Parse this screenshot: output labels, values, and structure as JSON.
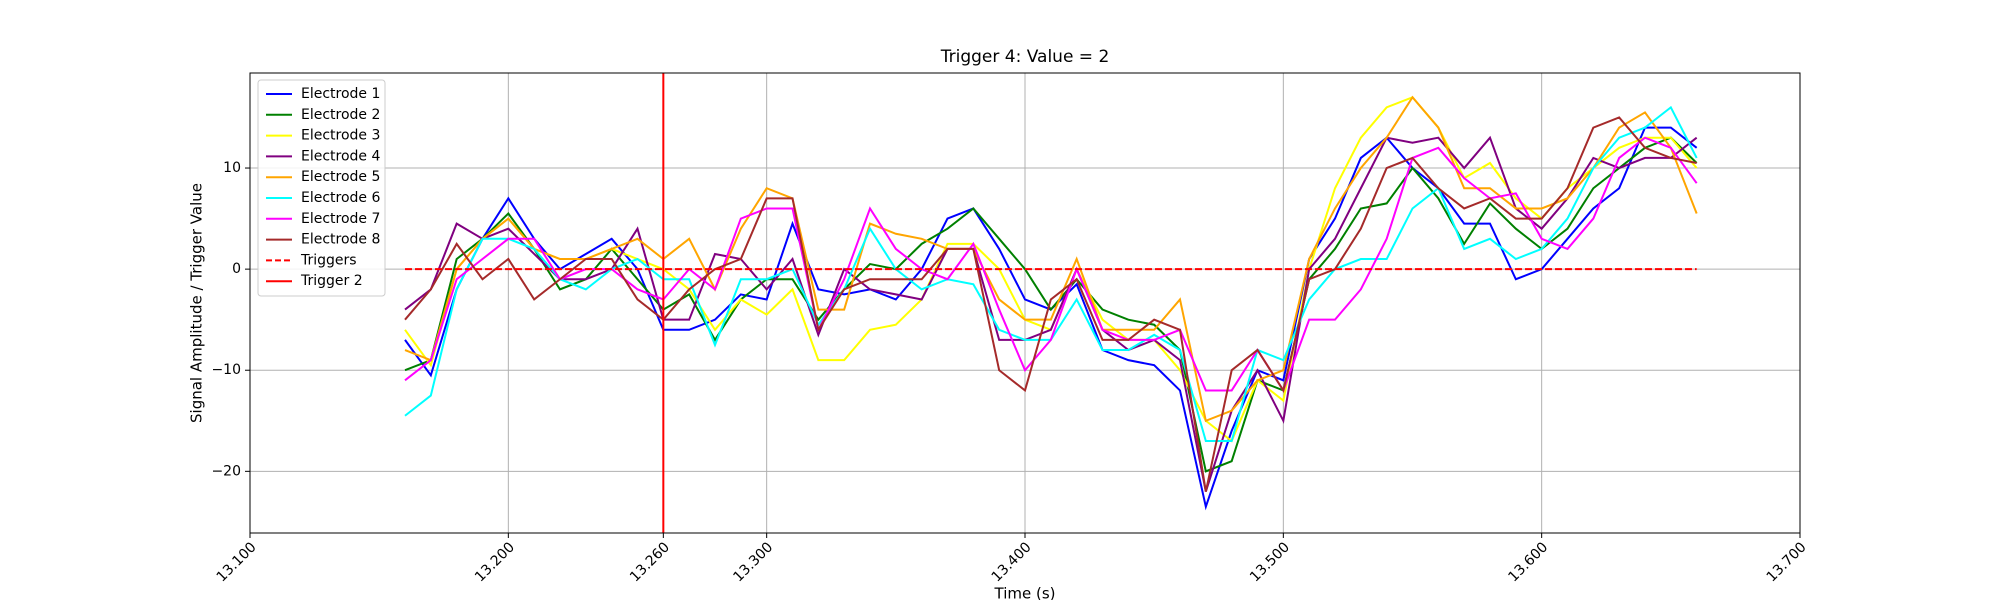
{
  "chart_data": {
    "type": "line",
    "title": "Trigger 4: Value = 2",
    "xlabel": "Time (s)",
    "ylabel": "Signal Amplitude / Trigger Value",
    "grid": true,
    "legend": "upper left",
    "xlim": [
      13.1,
      13.7
    ],
    "ylim": [
      -26.1,
      19.4
    ],
    "xticks": [
      {
        "value": 13.1,
        "label": "13.100"
      },
      {
        "value": 13.2,
        "label": "13.200"
      },
      {
        "value": 13.26,
        "label": "13.260"
      },
      {
        "value": 13.3,
        "label": "13.300"
      },
      {
        "value": 13.4,
        "label": "13.400"
      },
      {
        "value": 13.5,
        "label": "13.500"
      },
      {
        "value": 13.6,
        "label": "13.600"
      },
      {
        "value": 13.7,
        "label": "13.700"
      }
    ],
    "yticks": [
      {
        "value": -20,
        "label": "−20"
      },
      {
        "value": -10,
        "label": "−10"
      },
      0,
      10
    ],
    "x": [
      13.16,
      13.17,
      13.18,
      13.19,
      13.2,
      13.21,
      13.22,
      13.23,
      13.24,
      13.25,
      13.26,
      13.27,
      13.28,
      13.29,
      13.3,
      13.31,
      13.32,
      13.33,
      13.34,
      13.35,
      13.36,
      13.37,
      13.38,
      13.39,
      13.4,
      13.41,
      13.42,
      13.43,
      13.44,
      13.45,
      13.46,
      13.47,
      13.48,
      13.49,
      13.5,
      13.51,
      13.52,
      13.53,
      13.54,
      13.55,
      13.56,
      13.57,
      13.58,
      13.59,
      13.6,
      13.61,
      13.62,
      13.63,
      13.64,
      13.65,
      13.66
    ],
    "series": [
      {
        "name": "Electrode 1",
        "color": "blue",
        "values": [
          -7,
          -10.5,
          -2,
          3,
          7,
          3,
          0,
          1.5,
          3,
          0,
          -6,
          -6,
          -5,
          -2.5,
          -3,
          4.5,
          -2,
          -2.5,
          -2,
          -3,
          0,
          5,
          6,
          2,
          -3,
          -4,
          -1.5,
          -8,
          -9,
          -9.5,
          -12,
          -23.5,
          -16,
          -10,
          -11,
          1,
          5,
          11,
          13,
          10,
          8,
          4.5,
          4.5,
          -1,
          0,
          3,
          6,
          8,
          14,
          14,
          12
        ]
      },
      {
        "name": "Electrode 2",
        "color": "green",
        "values": [
          -10,
          -9,
          1,
          3,
          5.5,
          2,
          -2,
          -1,
          2,
          -1,
          -4,
          -2.5,
          -7,
          -3,
          -1,
          -1,
          -5,
          -2,
          0.5,
          0,
          2.5,
          4,
          6,
          3,
          0,
          -4,
          -1,
          -4,
          -5,
          -5.5,
          -8,
          -20,
          -19,
          -11,
          -12,
          -1,
          2,
          6,
          6.5,
          10,
          7,
          2.5,
          6.5,
          4,
          2,
          4,
          8,
          10,
          12,
          13,
          10.5
        ]
      },
      {
        "name": "Electrode 3",
        "color": "yellow",
        "values": [
          -6,
          -9.5,
          0,
          3,
          5,
          2,
          1,
          1,
          2,
          1,
          0,
          -2,
          -6,
          -3,
          -4.5,
          -2,
          -9,
          -9,
          -6,
          -5.5,
          -3,
          2.5,
          2.5,
          0,
          -5,
          -6,
          0,
          -5,
          -7,
          -7,
          -10,
          -15,
          -17,
          -11,
          -13,
          0,
          8,
          13,
          16,
          17,
          14,
          9,
          10.5,
          7,
          5,
          8,
          10,
          12,
          13,
          13,
          10
        ]
      },
      {
        "name": "Electrode 4",
        "color": "purple",
        "values": [
          -4,
          -2,
          4.5,
          3,
          4,
          1.5,
          -1,
          -1,
          0,
          4,
          -5,
          -5,
          1.5,
          1,
          -2,
          1,
          -6.5,
          0,
          -2,
          -2.5,
          -3,
          2,
          2,
          -7,
          -7,
          -6,
          0,
          -6,
          -8,
          -7,
          -9,
          -22,
          -14,
          -10,
          -15,
          0,
          3,
          8,
          13,
          12.5,
          13,
          10,
          13,
          6,
          4,
          7,
          11,
          10,
          11,
          11,
          13
        ]
      },
      {
        "name": "Electrode 5",
        "color": "orange",
        "values": [
          -8,
          -9,
          0,
          3,
          5,
          2,
          1,
          1,
          2,
          3,
          1,
          3,
          -2,
          4,
          8,
          7,
          -4,
          -4,
          4.5,
          3.5,
          3,
          2,
          2,
          -3,
          -5,
          -5,
          1,
          -6,
          -6,
          -6,
          -3,
          -15,
          -14,
          -11,
          -10,
          1,
          6,
          10,
          13,
          17,
          14,
          8,
          8,
          6,
          6,
          7,
          10,
          14,
          15.5,
          12,
          5.5
        ]
      },
      {
        "name": "Electrode 6",
        "color": "cyan",
        "values": [
          -14.5,
          -12.5,
          -2,
          3,
          3,
          2,
          -1,
          -2,
          0,
          1,
          -1,
          -1,
          -7.5,
          -1,
          -1,
          0,
          -5.5,
          -2,
          4,
          0,
          -2,
          -1,
          -1.5,
          -6,
          -7,
          -7,
          -3,
          -8,
          -8,
          -6.5,
          -8,
          -17,
          -17,
          -8,
          -9,
          -3,
          0,
          1,
          1,
          6,
          8,
          2,
          3,
          1,
          2,
          5,
          10,
          13,
          14,
          16,
          11
        ]
      },
      {
        "name": "Electrode 7",
        "color": "magenta",
        "values": [
          -11,
          -9,
          -1,
          1,
          3,
          3,
          -1,
          0,
          0,
          -2,
          -3,
          0,
          -2,
          5,
          6,
          6,
          -6,
          -1,
          6,
          2,
          0,
          -1,
          2.5,
          -4,
          -10,
          -7,
          0,
          -6,
          -7,
          -7,
          -6,
          -12,
          -12,
          -8,
          -12,
          -5,
          -5,
          -2,
          3,
          11,
          12,
          9,
          7,
          7.5,
          3,
          2,
          5,
          11,
          13,
          12,
          8.5
        ]
      },
      {
        "name": "Electrode 8",
        "color": "brown",
        "values": [
          -5,
          -2,
          2.5,
          -1,
          1,
          -3,
          -1,
          1,
          1,
          -3,
          -5,
          -2,
          0,
          1,
          7,
          7,
          -6,
          -2,
          -1,
          -1,
          -1,
          2,
          2,
          -10,
          -12,
          -3,
          -1,
          -7,
          -7,
          -5,
          -6,
          -22,
          -10,
          -8,
          -12,
          -1,
          0,
          4,
          10,
          11,
          8,
          6,
          7,
          5,
          5,
          8,
          14,
          15,
          12,
          11,
          10.5
        ]
      },
      {
        "name": "Triggers",
        "color": "red",
        "dashed": true,
        "x": [
          13.16,
          13.66
        ],
        "values": [
          0,
          0
        ]
      }
    ],
    "vline": {
      "name": "Trigger 2",
      "color": "red",
      "x": 13.26
    }
  }
}
